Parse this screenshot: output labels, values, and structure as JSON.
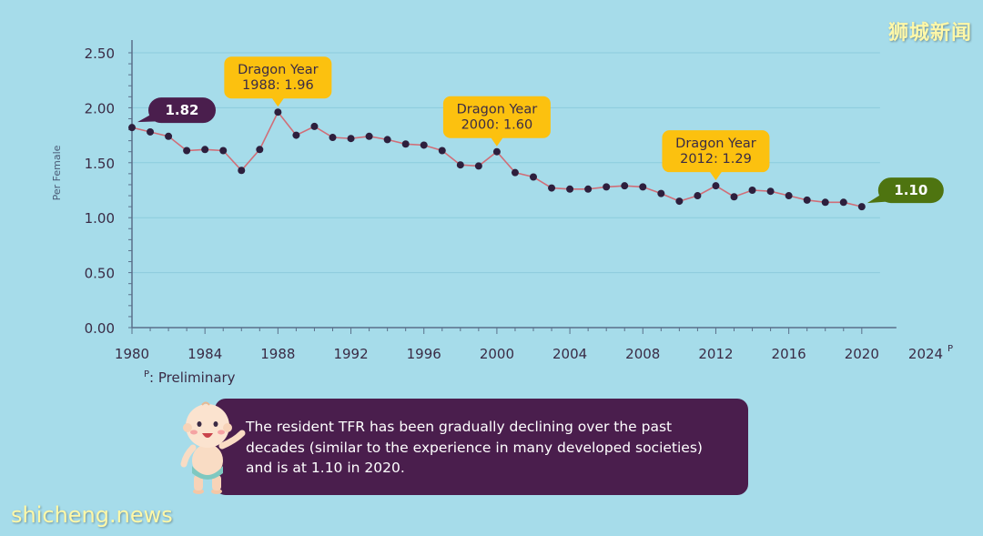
{
  "chart_data": {
    "type": "line",
    "ylabel": "Per Female",
    "ylim": [
      0,
      2.5
    ],
    "y_ticks": [
      "0.00",
      "0.50",
      "1.00",
      "1.50",
      "2.00",
      "2.50"
    ],
    "x_range": [
      1980,
      2024
    ],
    "x_ticks": [
      "1980",
      "1984",
      "1988",
      "1992",
      "1996",
      "2000",
      "2004",
      "2008",
      "2012",
      "2016",
      "2020",
      "2024"
    ],
    "x_tick_superscript": {
      "2024": "P"
    },
    "grid": true,
    "x": [
      1980,
      1981,
      1982,
      1983,
      1984,
      1985,
      1986,
      1987,
      1988,
      1989,
      1990,
      1991,
      1992,
      1993,
      1994,
      1995,
      1996,
      1997,
      1998,
      1999,
      2000,
      2001,
      2002,
      2003,
      2004,
      2005,
      2006,
      2007,
      2008,
      2009,
      2010,
      2011,
      2012,
      2013,
      2014,
      2015,
      2016,
      2017,
      2018,
      2019,
      2020
    ],
    "values": [
      1.82,
      1.78,
      1.74,
      1.61,
      1.62,
      1.61,
      1.43,
      1.62,
      1.96,
      1.75,
      1.83,
      1.73,
      1.72,
      1.74,
      1.71,
      1.67,
      1.66,
      1.61,
      1.48,
      1.47,
      1.6,
      1.41,
      1.37,
      1.27,
      1.26,
      1.26,
      1.28,
      1.29,
      1.28,
      1.22,
      1.15,
      1.2,
      1.29,
      1.19,
      1.25,
      1.24,
      1.2,
      1.16,
      1.14,
      1.14,
      1.1
    ],
    "line_color": "#d06e78",
    "marker_color": "#2d1f3d",
    "annotations": [
      {
        "year": 1988,
        "lines": [
          "Dragon Year",
          "1988: 1.96"
        ]
      },
      {
        "year": 2000,
        "lines": [
          "Dragon Year",
          "2000: 1.60"
        ]
      },
      {
        "year": 2012,
        "lines": [
          "Dragon Year",
          "2012: 1.29"
        ]
      }
    ],
    "start_label": "1.82",
    "end_label": "1.10",
    "colors": {
      "background": "#a6dcea",
      "callout": "#fcc10f",
      "callout_text": "#3a2b45",
      "start_badge": "#4a1e4d",
      "end_badge": "#4e7410",
      "axis": "#5a6f8a",
      "grid": "#8ccbdc"
    }
  },
  "footnote": {
    "marker": "P",
    "text": ": Preliminary"
  },
  "caption": "The resident TFR has been gradually declining over the past decades (similar to the experience in many developed societies) and is at 1.10 in 2020.",
  "watermarks": {
    "top_right": "狮城新闻",
    "bottom_left": "shicheng.news"
  }
}
